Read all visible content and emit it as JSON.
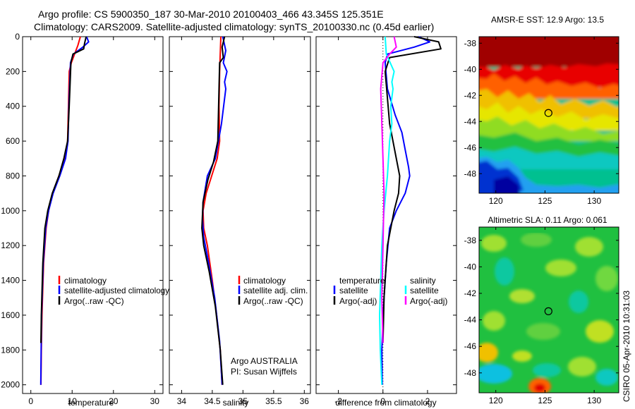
{
  "header": {
    "line1": "Argo profile: CS 5900350_187 30-Mar-2010 20100403_466 43.345S 125.351E",
    "line2": "Climatology: CARS2009. Satellite-adjusted climatology: synTS_20100330.nc (0.45d earlier)"
  },
  "colors": {
    "climatology": "#ff0000",
    "satellite": "#0000ff",
    "argo": "#000000",
    "sat_salinity": "#00ffff",
    "argo_salinity": "#ff00ff"
  },
  "chart_data": [
    {
      "type": "line",
      "id": "temperature",
      "xlabel": "temperature",
      "ylabel": "",
      "xlim": [
        -2,
        32
      ],
      "ylim": [
        2050,
        0
      ],
      "xticks": [
        0,
        10,
        20,
        30
      ],
      "yticks": [
        0,
        200,
        400,
        600,
        800,
        1000,
        1200,
        1400,
        1600,
        1800,
        2000
      ],
      "legend": [
        "climatology",
        "satellite-adjusted climatology",
        "Argo(..raw -QC)"
      ],
      "series": [
        {
          "name": "climatology",
          "color": "#ff0000",
          "x": [
            12.0,
            11.4,
            10.6,
            9.8,
            9.3,
            9.1,
            8.9,
            8.3,
            6.8,
            5.3,
            4.3,
            3.7,
            3.1,
            2.7,
            2.55,
            2.45
          ],
          "y": [
            0,
            50,
            100,
            150,
            200,
            400,
            600,
            700,
            800,
            900,
            1000,
            1100,
            1300,
            1600,
            1800,
            2000
          ]
        },
        {
          "name": "satellite-adjusted climatology",
          "color": "#0000ff",
          "x": [
            13.5,
            14.0,
            12.6,
            10.3,
            9.6,
            9.2,
            9.0,
            8.4,
            7.0,
            5.4,
            4.3,
            3.6,
            3.0,
            2.6,
            2.5,
            2.4
          ],
          "y": [
            0,
            30,
            60,
            100,
            150,
            400,
            600,
            700,
            800,
            900,
            1000,
            1100,
            1300,
            1600,
            1800,
            2000
          ]
        },
        {
          "name": "Argo(..raw -QC)",
          "color": "#000000",
          "x": [
            13.4,
            13.0,
            12.8,
            10.2,
            9.7,
            9.3,
            8.9,
            8.0,
            6.8,
            5.2,
            4.1,
            3.4,
            2.9,
            2.55,
            2.45
          ],
          "y": [
            0,
            40,
            70,
            100,
            150,
            400,
            600,
            700,
            800,
            900,
            1000,
            1100,
            1300,
            1600,
            1760
          ]
        }
      ]
    },
    {
      "type": "line",
      "id": "salinity",
      "xlabel": "salinity",
      "ylabel": "",
      "xlim": [
        33.8,
        36.1
      ],
      "ylim": [
        2050,
        0
      ],
      "xticks": [
        34,
        34.5,
        35,
        35.5,
        36
      ],
      "legend": [
        "climatology",
        "satellite adj. clim.",
        "Argo(..raw -QC)"
      ],
      "annotation": [
        "Argo AUSTRALIA",
        "PI: Susan Wijffels"
      ],
      "series": [
        {
          "name": "climatology",
          "color": "#ff0000",
          "x": [
            34.64,
            34.62,
            34.61,
            34.62,
            34.58,
            34.49,
            34.4,
            34.35,
            34.36,
            34.42,
            34.5,
            34.57,
            34.63,
            34.66
          ],
          "y": [
            0,
            200,
            400,
            600,
            700,
            800,
            900,
            1000,
            1100,
            1200,
            1400,
            1600,
            1800,
            2000
          ]
        },
        {
          "name": "satellite adj. clim.",
          "color": "#0000ff",
          "x": [
            34.67,
            34.72,
            34.68,
            34.74,
            34.7,
            34.72,
            34.65,
            34.55,
            34.42,
            34.35,
            34.34,
            34.36,
            34.44,
            34.54,
            34.62,
            34.66
          ],
          "y": [
            0,
            80,
            150,
            200,
            260,
            300,
            500,
            700,
            800,
            950,
            1050,
            1150,
            1300,
            1500,
            1750,
            2000
          ]
        },
        {
          "name": "Argo(..raw -QC)",
          "color": "#000000",
          "x": [
            34.7,
            34.66,
            34.68,
            34.62,
            34.61,
            34.59,
            34.52,
            34.43,
            34.35,
            34.33,
            34.36,
            34.45,
            34.55,
            34.63,
            34.67
          ],
          "y": [
            0,
            60,
            120,
            150,
            300,
            600,
            720,
            820,
            950,
            1100,
            1200,
            1350,
            1550,
            1800,
            2000
          ]
        }
      ]
    },
    {
      "type": "line",
      "id": "difference",
      "xlabel": "difference from climatology",
      "ylabel": "",
      "xlim": [
        -3,
        3.3
      ],
      "ylim": [
        2050,
        0
      ],
      "xticks": [
        -2,
        0,
        2
      ],
      "legend_headers": [
        "temperature",
        "salinity"
      ],
      "legend": [
        "satellite",
        "Argo(-adj)",
        "satellite",
        "Argo(-adj)"
      ],
      "series": [
        {
          "name": "satellite",
          "quantity": "temperature",
          "color": "#0000ff",
          "x": [
            1.6,
            2.1,
            1.4,
            0.2,
            0.1,
            0.2,
            0.55,
            0.85,
            1.0,
            1.15,
            1.2,
            1.0,
            0.6,
            0.3,
            0.15,
            0.05,
            -0.05,
            -0.03
          ],
          "y": [
            0,
            30,
            60,
            100,
            150,
            300,
            450,
            550,
            650,
            750,
            800,
            900,
            1000,
            1100,
            1300,
            1500,
            1800,
            2000
          ]
        },
        {
          "name": "Argo(-adj)",
          "quantity": "temperature",
          "color": "#000000",
          "x": [
            1.4,
            2.5,
            2.6,
            0.3,
            0.1,
            0.3,
            0.6,
            0.75,
            0.7,
            0.5,
            0.2,
            0.05,
            0.0
          ],
          "y": [
            0,
            30,
            70,
            120,
            200,
            500,
            700,
            800,
            900,
            1000,
            1200,
            1500,
            1760
          ]
        },
        {
          "name": "satellite",
          "quantity": "salinity",
          "color": "#00ffff",
          "x": [
            0.1,
            0.15,
            0.5,
            0.4,
            0.45,
            0.35,
            0.4,
            0.3,
            0.2,
            0.05,
            -0.05,
            -0.1,
            -0.15,
            -0.12,
            -0.05
          ],
          "y": [
            0,
            100,
            200,
            260,
            300,
            400,
            500,
            600,
            800,
            1000,
            1200,
            1400,
            1600,
            1800,
            2000
          ]
        },
        {
          "name": "Argo(-adj)",
          "quantity": "salinity",
          "color": "#ff00ff",
          "x": [
            0.5,
            0.6,
            0.3,
            0.0,
            -0.1,
            -0.05,
            0.0,
            0.05,
            0.0,
            -0.05,
            0.0
          ],
          "y": [
            0,
            60,
            100,
            150,
            300,
            500,
            700,
            900,
            1200,
            1500,
            1760
          ]
        }
      ]
    },
    {
      "type": "heatmap",
      "id": "sst_map",
      "title": "AMSR-E SST: 12.9 Argo: 13.5",
      "xlim": [
        118.3,
        132.5
      ],
      "ylim": [
        -49.5,
        -37.5
      ],
      "xticks": [
        120,
        125,
        130
      ],
      "yticks": [
        -38,
        -40,
        -42,
        -44,
        -46,
        -48
      ],
      "marker": {
        "lon": 125.35,
        "lat": -43.35
      }
    },
    {
      "type": "heatmap",
      "id": "sla_map",
      "title": "Altimetric SLA: 0.11 Argo: 0.061",
      "xlim": [
        118.3,
        132.5
      ],
      "ylim": [
        -49.5,
        -37.0
      ],
      "xticks": [
        120,
        125,
        130
      ],
      "yticks": [
        -38,
        -40,
        -42,
        -44,
        -46,
        -48
      ],
      "marker": {
        "lon": 125.35,
        "lat": -43.35
      }
    }
  ],
  "footer": {
    "credit": "CSIRO 05-Apr-2010 10:31:03"
  }
}
